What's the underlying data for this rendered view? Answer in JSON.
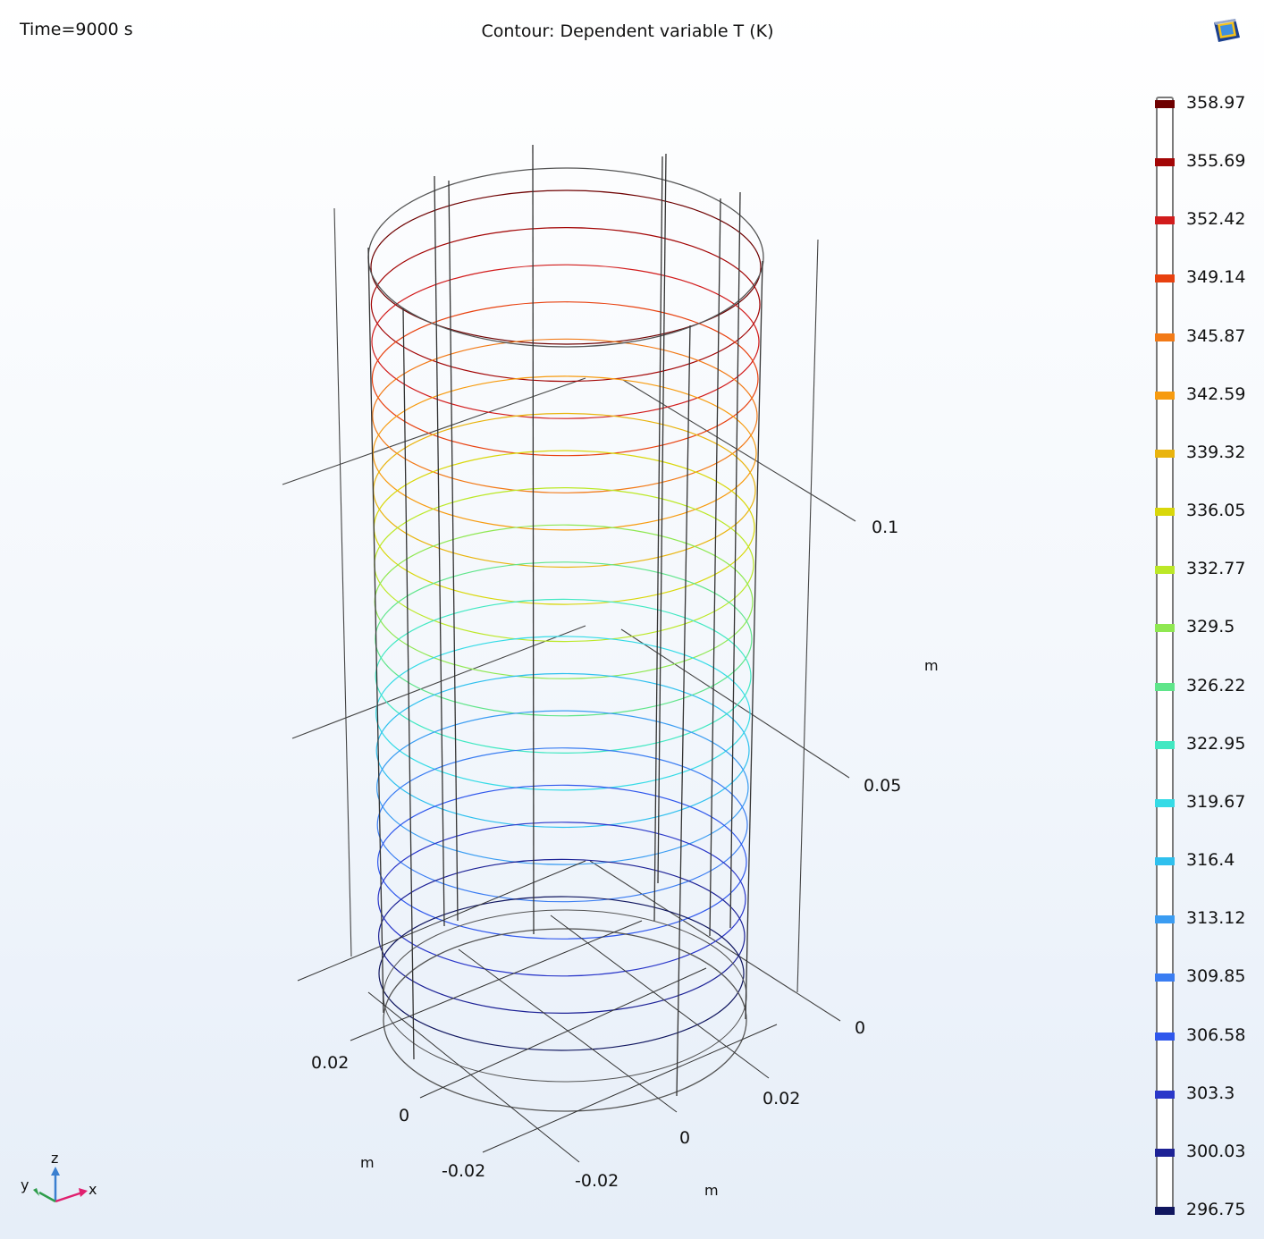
{
  "header": {
    "time_label": "Time=9000 s",
    "title": "Contour: Dependent variable T (K)"
  },
  "icons": {
    "logo": "comsol-logo-icon",
    "triad": "axis-orientation-triad-icon"
  },
  "chart_data": {
    "type": "contour",
    "variable": "Dependent variable T",
    "unit": "K",
    "view": "3D",
    "x_axis": {
      "unit": "m",
      "ticks": [
        "-0.02",
        "0",
        "0.02"
      ]
    },
    "y_axis": {
      "unit": "m",
      "ticks": [
        "-0.02",
        "0",
        "0.02"
      ]
    },
    "z_axis": {
      "unit": "m",
      "ticks": [
        "0",
        "0.05",
        "0.1"
      ]
    },
    "contour_levels": [
      358.97,
      355.69,
      352.42,
      349.14,
      345.87,
      342.59,
      339.32,
      336.05,
      332.77,
      329.5,
      326.22,
      322.95,
      319.67,
      316.4,
      313.12,
      309.85,
      306.58,
      303.3,
      300.03,
      296.75
    ],
    "level_colors": [
      "#6e0000",
      "#a30606",
      "#d21c1c",
      "#e8410f",
      "#f27a17",
      "#f79b0f",
      "#e9b40e",
      "#d9d70a",
      "#bce827",
      "#8fe851",
      "#5fe58a",
      "#41e8c2",
      "#35dbe6",
      "#2fc0ee",
      "#3a9cf2",
      "#3a7df2",
      "#2f57ec",
      "#2a37c9",
      "#1d2296",
      "#10165f"
    ],
    "legend": "right",
    "triad_labels": {
      "z": "z",
      "y": "y",
      "x": "x"
    }
  }
}
